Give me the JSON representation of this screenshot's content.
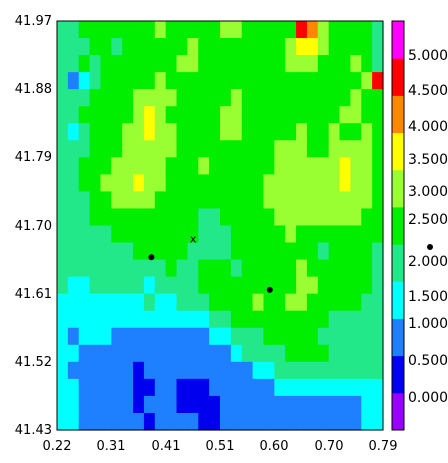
{
  "chart_data": {
    "type": "heatmap",
    "title": "",
    "xlabel": "",
    "ylabel": "",
    "xlim": [
      0.22,
      0.79
    ],
    "ylim": [
      41.43,
      41.97
    ],
    "x_ticks": [
      "0.22",
      "0.31",
      "0.41",
      "0.51",
      "0.60",
      "0.70",
      "0.79"
    ],
    "y_ticks": [
      "41.43",
      "41.52",
      "41.61",
      "41.70",
      "41.79",
      "41.88",
      "41.97"
    ],
    "colorbar": {
      "levels": [
        "0.000",
        "0.500",
        "1.000",
        "1.500",
        "2.000",
        "2.500",
        "3.000",
        "3.500",
        "4.000",
        "4.500",
        "5.000"
      ],
      "colors": [
        "#9900ff",
        "#0000ee",
        "#1e7fff",
        "#00ffff",
        "#22e88a",
        "#00ee00",
        "#99ff33",
        "#ffff00",
        "#ff8800",
        "#ff0000",
        "#ff00ff"
      ]
    },
    "grid": false,
    "markers": [
      {
        "label": "",
        "x": 0.385,
        "y": 41.658,
        "symbol": "dot"
      },
      {
        "label": "",
        "x": 0.592,
        "y": 41.615,
        "symbol": "dot"
      },
      {
        "label": "x",
        "x": 0.458,
        "y": 41.683,
        "symbol": "text"
      }
    ],
    "grid_rows_top_to_bottom": [
      [
        4,
        4,
        5,
        5,
        5,
        5,
        5,
        5,
        5,
        6,
        5,
        5,
        5,
        5,
        5,
        6,
        6,
        5,
        5,
        5,
        5,
        5,
        9,
        8,
        6,
        5,
        5,
        5,
        5,
        4
      ],
      [
        4,
        4,
        4,
        5,
        5,
        4,
        5,
        5,
        5,
        5,
        5,
        5,
        6,
        5,
        5,
        5,
        5,
        5,
        5,
        5,
        5,
        6,
        7,
        7,
        6,
        5,
        5,
        5,
        5,
        4
      ],
      [
        4,
        4,
        5,
        4,
        5,
        5,
        5,
        5,
        5,
        5,
        5,
        6,
        6,
        5,
        5,
        5,
        5,
        5,
        5,
        5,
        5,
        6,
        6,
        6,
        5,
        5,
        5,
        6,
        5,
        4
      ],
      [
        4,
        2,
        3,
        4,
        5,
        5,
        5,
        5,
        5,
        6,
        5,
        5,
        5,
        5,
        5,
        5,
        5,
        5,
        5,
        5,
        5,
        5,
        5,
        5,
        5,
        5,
        5,
        5,
        6,
        9
      ],
      [
        4,
        4,
        4,
        5,
        5,
        5,
        5,
        6,
        6,
        6,
        6,
        5,
        5,
        5,
        5,
        5,
        6,
        5,
        5,
        5,
        5,
        5,
        5,
        5,
        5,
        5,
        5,
        6,
        5,
        5
      ],
      [
        4,
        4,
        5,
        5,
        5,
        5,
        5,
        6,
        7,
        6,
        5,
        5,
        5,
        5,
        5,
        6,
        6,
        5,
        5,
        5,
        5,
        5,
        5,
        5,
        5,
        5,
        6,
        6,
        5,
        5
      ],
      [
        4,
        3,
        4,
        5,
        5,
        5,
        6,
        6,
        7,
        6,
        6,
        5,
        5,
        5,
        5,
        6,
        6,
        5,
        5,
        5,
        5,
        5,
        6,
        5,
        5,
        6,
        5,
        5,
        6,
        5
      ],
      [
        4,
        4,
        4,
        5,
        5,
        5,
        6,
        6,
        6,
        6,
        6,
        5,
        5,
        5,
        5,
        5,
        5,
        5,
        5,
        5,
        6,
        6,
        6,
        5,
        5,
        6,
        6,
        6,
        6,
        5
      ],
      [
        4,
        4,
        5,
        5,
        5,
        6,
        6,
        6,
        6,
        6,
        5,
        5,
        5,
        6,
        5,
        5,
        5,
        5,
        5,
        5,
        6,
        6,
        6,
        6,
        6,
        6,
        7,
        6,
        6,
        5
      ],
      [
        4,
        4,
        5,
        5,
        6,
        6,
        6,
        7,
        6,
        6,
        5,
        5,
        5,
        5,
        5,
        5,
        5,
        5,
        5,
        6,
        6,
        6,
        6,
        6,
        6,
        6,
        7,
        6,
        6,
        5
      ],
      [
        4,
        4,
        4,
        5,
        5,
        6,
        6,
        6,
        6,
        5,
        5,
        5,
        5,
        5,
        5,
        5,
        5,
        5,
        5,
        6,
        6,
        6,
        6,
        6,
        6,
        6,
        6,
        6,
        6,
        5
      ],
      [
        4,
        4,
        4,
        5,
        5,
        5,
        5,
        5,
        5,
        5,
        5,
        5,
        5,
        4,
        4,
        5,
        5,
        5,
        5,
        5,
        6,
        6,
        6,
        6,
        6,
        6,
        6,
        6,
        5,
        5
      ],
      [
        4,
        4,
        4,
        4,
        4,
        5,
        5,
        5,
        5,
        5,
        5,
        5,
        5,
        4,
        4,
        4,
        5,
        5,
        5,
        5,
        5,
        6,
        5,
        5,
        5,
        5,
        5,
        5,
        5,
        5
      ],
      [
        4,
        4,
        4,
        4,
        4,
        4,
        4,
        5,
        5,
        5,
        5,
        5,
        4,
        4,
        4,
        4,
        5,
        5,
        5,
        5,
        5,
        5,
        5,
        5,
        4,
        5,
        5,
        5,
        5,
        4
      ],
      [
        4,
        4,
        4,
        4,
        4,
        4,
        4,
        4,
        4,
        4,
        5,
        4,
        4,
        5,
        5,
        5,
        4,
        5,
        5,
        5,
        5,
        5,
        6,
        5,
        5,
        5,
        5,
        5,
        5,
        4
      ],
      [
        4,
        3,
        3,
        4,
        4,
        4,
        4,
        4,
        3,
        4,
        4,
        4,
        4,
        5,
        5,
        5,
        5,
        5,
        5,
        5,
        5,
        5,
        6,
        6,
        5,
        5,
        5,
        5,
        5,
        4
      ],
      [
        3,
        3,
        3,
        3,
        3,
        3,
        3,
        3,
        4,
        3,
        3,
        4,
        4,
        4,
        5,
        5,
        5,
        5,
        6,
        5,
        5,
        6,
        6,
        5,
        5,
        5,
        5,
        5,
        4,
        4
      ],
      [
        3,
        3,
        3,
        3,
        3,
        3,
        3,
        3,
        3,
        3,
        3,
        3,
        3,
        3,
        4,
        4,
        5,
        5,
        5,
        5,
        5,
        5,
        5,
        5,
        5,
        4,
        4,
        4,
        4,
        4
      ],
      [
        3,
        2,
        3,
        3,
        3,
        2,
        2,
        2,
        2,
        2,
        2,
        2,
        2,
        2,
        3,
        3,
        4,
        4,
        4,
        5,
        5,
        5,
        5,
        5,
        4,
        4,
        4,
        4,
        4,
        4
      ],
      [
        3,
        3,
        2,
        2,
        2,
        2,
        2,
        2,
        2,
        2,
        2,
        2,
        2,
        2,
        2,
        2,
        3,
        4,
        4,
        4,
        4,
        5,
        5,
        5,
        5,
        4,
        4,
        4,
        4,
        4
      ],
      [
        3,
        2,
        2,
        2,
        2,
        2,
        2,
        1,
        2,
        2,
        2,
        2,
        2,
        2,
        2,
        2,
        2,
        2,
        3,
        3,
        4,
        4,
        4,
        4,
        4,
        4,
        4,
        4,
        4,
        4
      ],
      [
        3,
        3,
        2,
        2,
        2,
        2,
        2,
        1,
        1,
        2,
        2,
        1,
        1,
        1,
        2,
        2,
        2,
        2,
        2,
        2,
        3,
        3,
        3,
        3,
        3,
        3,
        3,
        3,
        3,
        3
      ],
      [
        3,
        3,
        2,
        2,
        2,
        2,
        2,
        1,
        2,
        2,
        2,
        1,
        1,
        1,
        1,
        2,
        2,
        2,
        2,
        2,
        2,
        2,
        2,
        2,
        2,
        2,
        2,
        2,
        3,
        3
      ],
      [
        3,
        3,
        2,
        2,
        2,
        2,
        2,
        2,
        1,
        2,
        2,
        2,
        2,
        1,
        1,
        2,
        2,
        2,
        2,
        2,
        2,
        2,
        2,
        2,
        2,
        2,
        2,
        2,
        3,
        3
      ]
    ]
  }
}
